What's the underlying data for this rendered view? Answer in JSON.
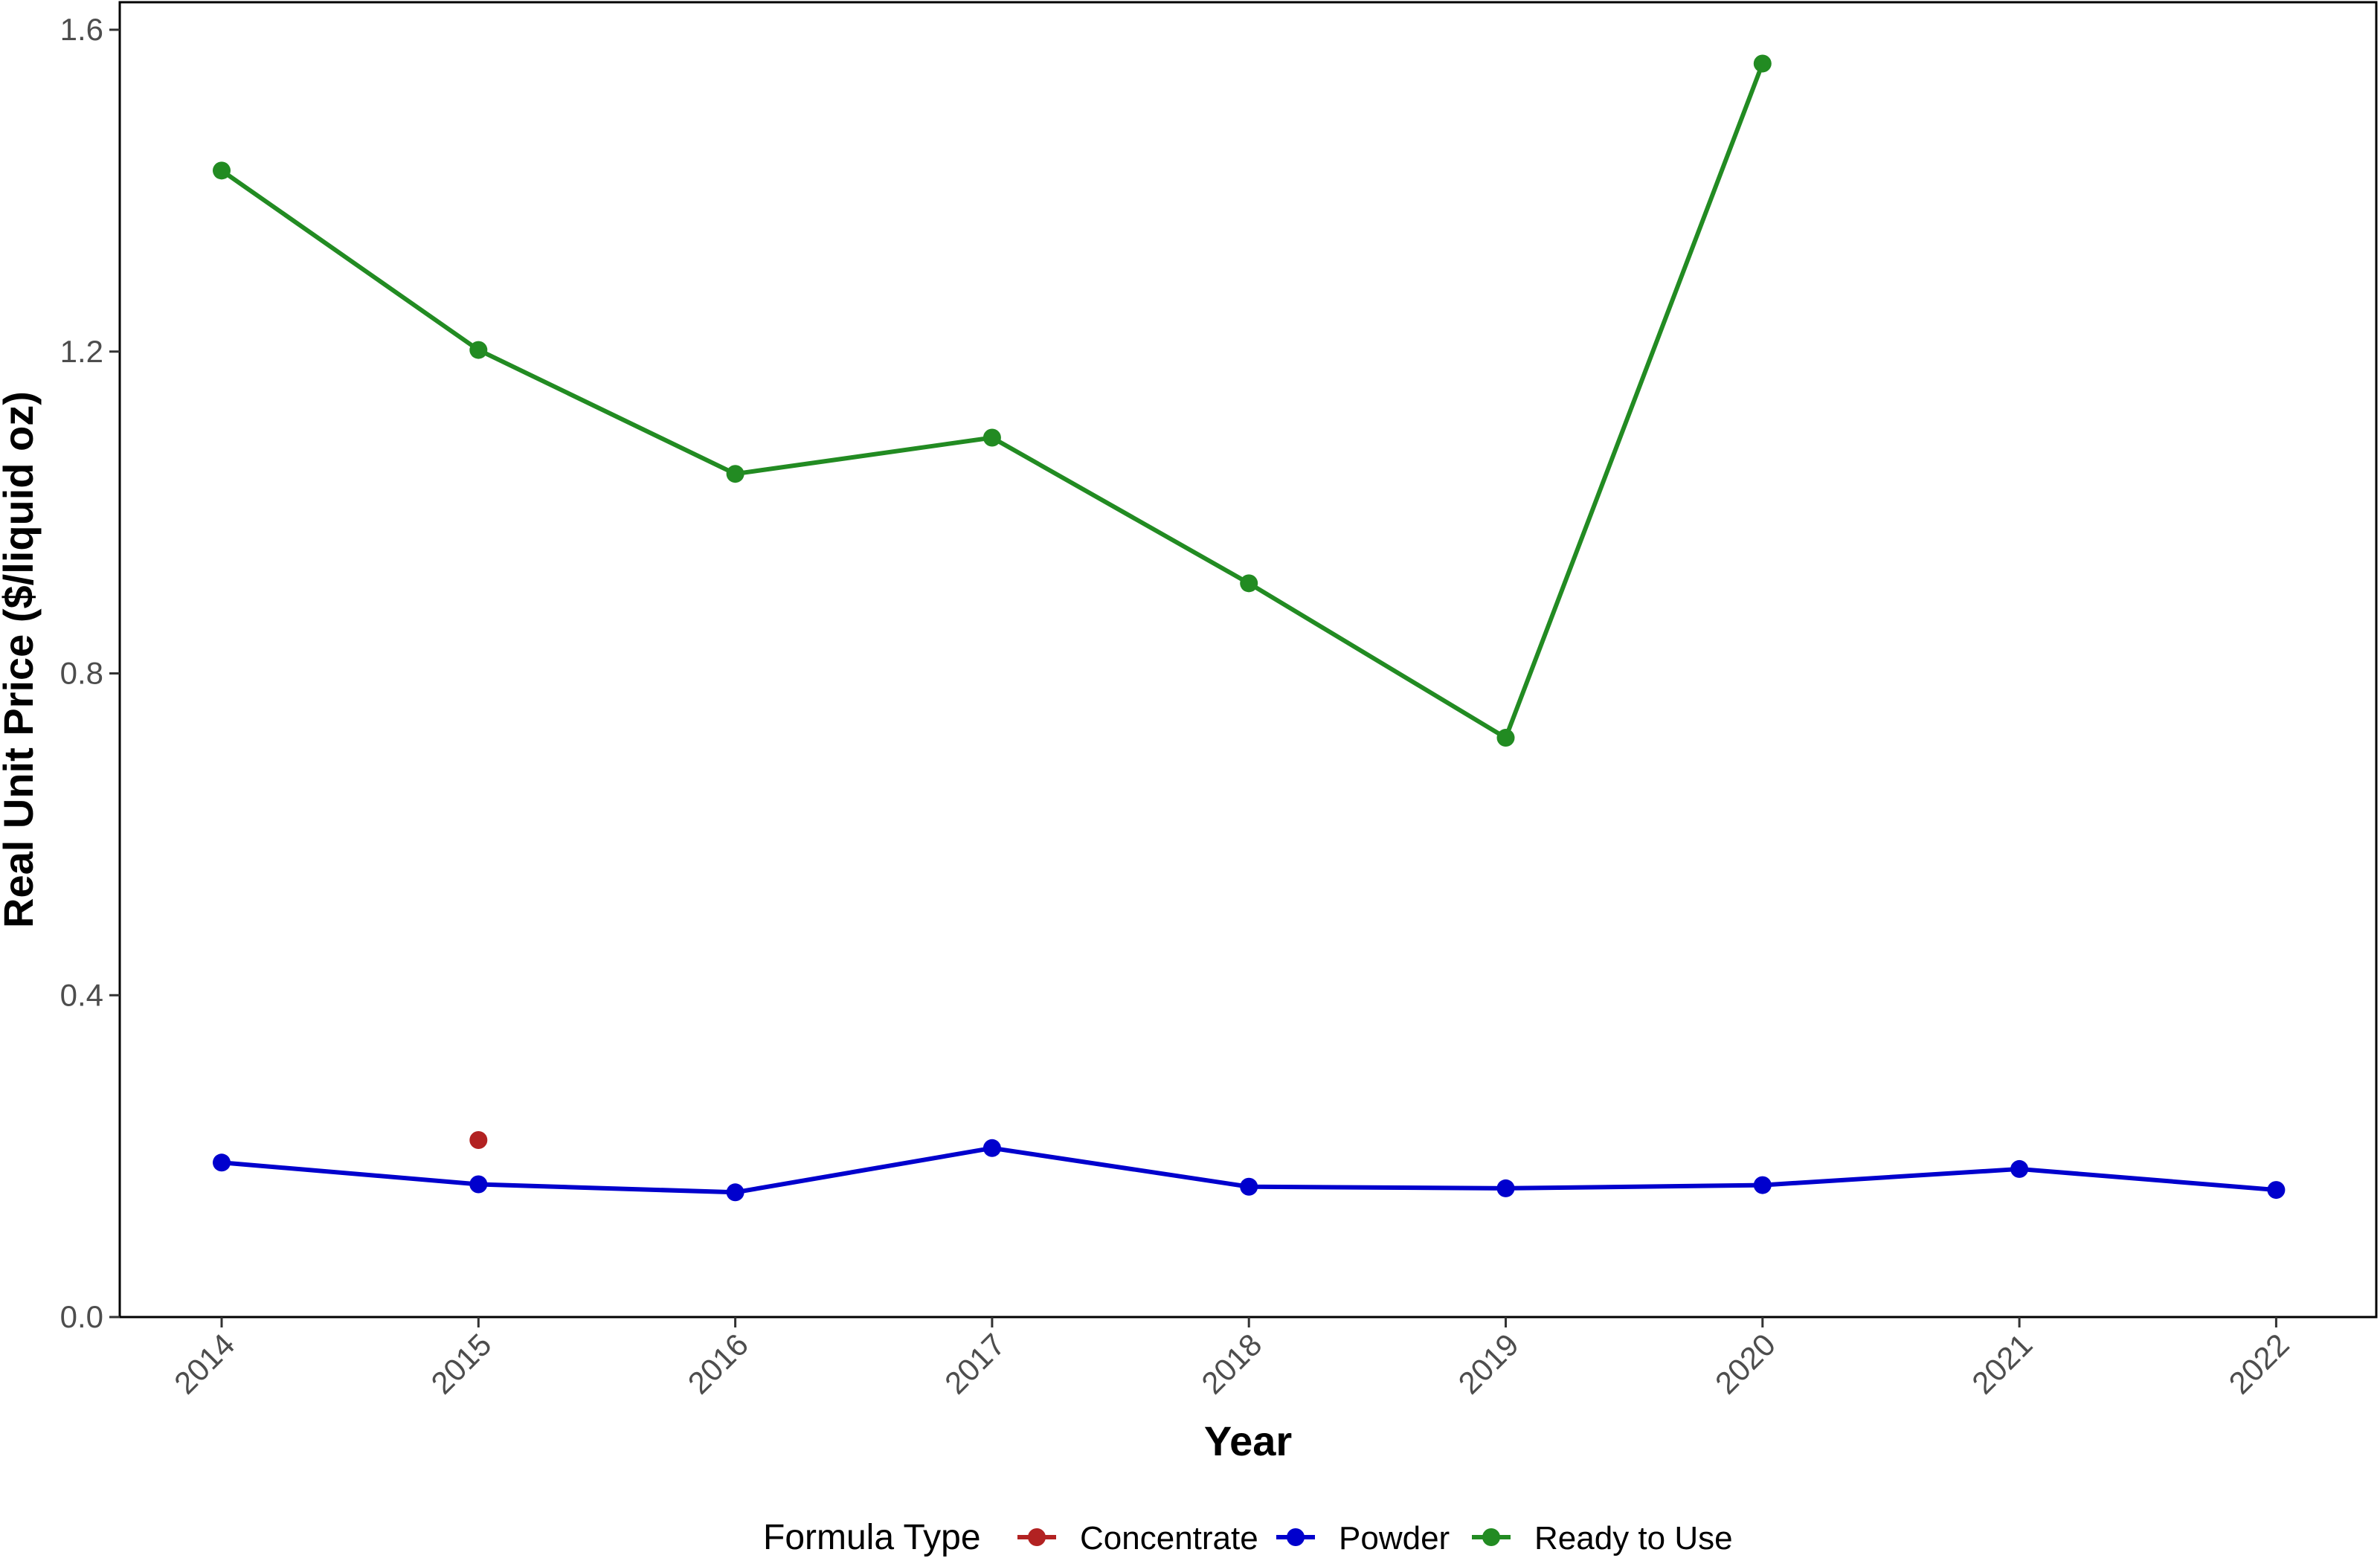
{
  "chart_data": {
    "type": "line",
    "title": "",
    "xlabel": "Year",
    "ylabel": "Real Unit Price ($/liquid oz)",
    "x": [
      "2014",
      "2015",
      "2016",
      "2017",
      "2018",
      "2019",
      "2020",
      "2021",
      "2022"
    ],
    "ylim": [
      0,
      1.6
    ],
    "yticks": [
      "0.0",
      "0.4",
      "0.8",
      "1.2",
      "1.6"
    ],
    "grid": false,
    "legend": {
      "title": "Formula Type",
      "position": "bottom"
    },
    "series": [
      {
        "name": "Concentrate",
        "color": "#b22222",
        "values": [
          null,
          0.22,
          null,
          null,
          null,
          null,
          null,
          null,
          null
        ]
      },
      {
        "name": "Powder",
        "color": "#0000cd",
        "values": [
          0.192,
          0.165,
          0.155,
          0.21,
          0.162,
          0.16,
          0.164,
          0.184,
          0.158
        ]
      },
      {
        "name": "Ready to Use",
        "color": "#228b22",
        "values": [
          1.425,
          1.202,
          1.048,
          1.093,
          0.912,
          0.72,
          1.558,
          null,
          null
        ]
      }
    ]
  }
}
